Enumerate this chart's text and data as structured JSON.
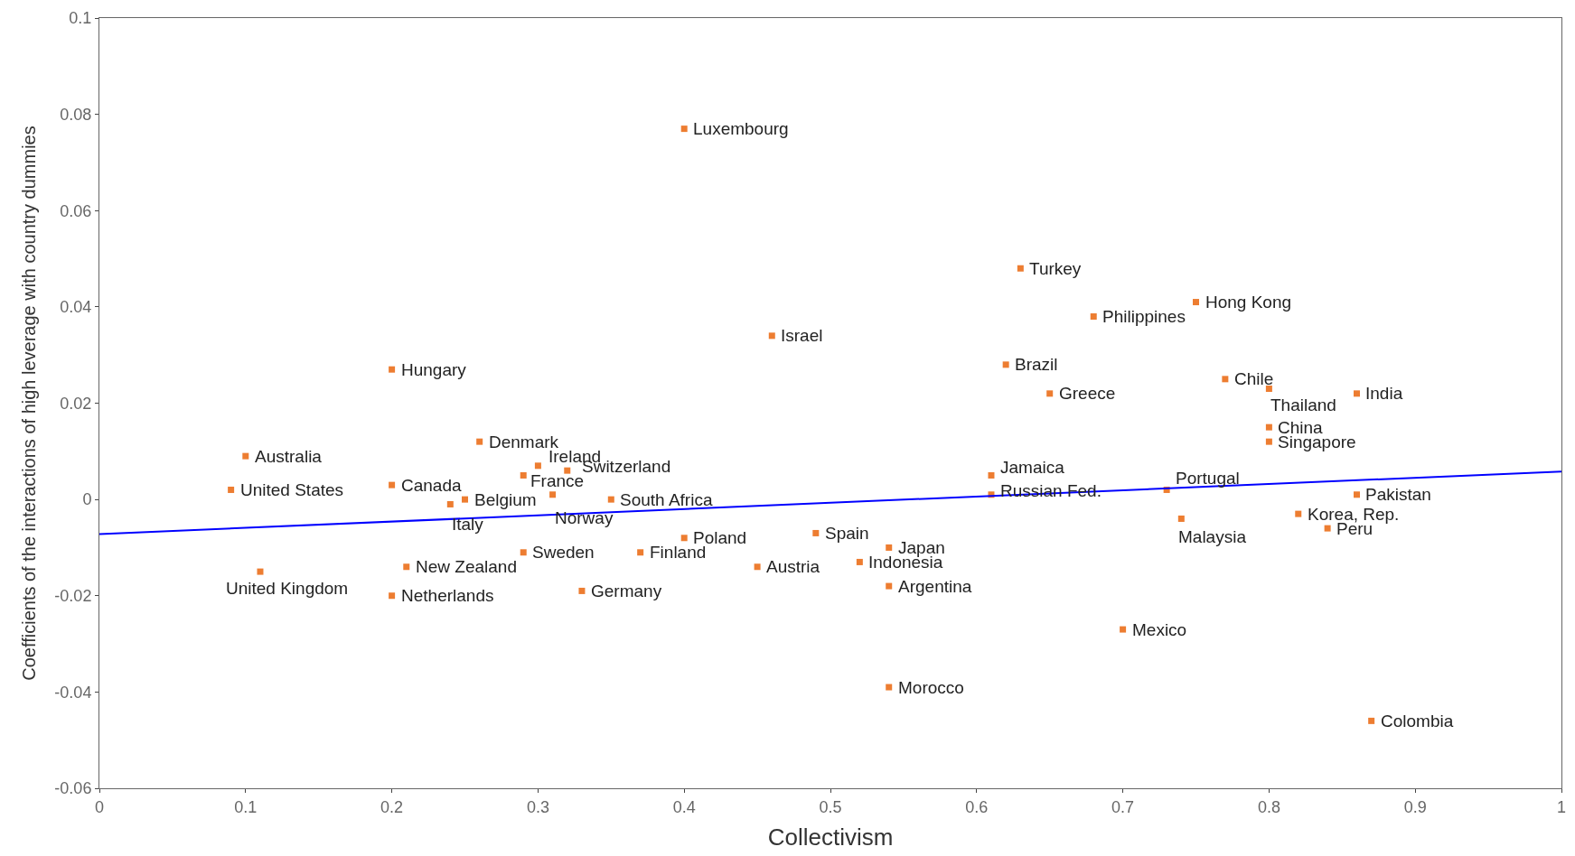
{
  "chart_data": {
    "type": "scatter",
    "xlabel": "Collectivism",
    "ylabel": "Coefficients of the interactions of high leverage with country dummies",
    "xlim": [
      0,
      1
    ],
    "xticks": [
      0,
      0.1,
      0.2,
      0.3,
      0.4,
      0.5,
      0.6,
      0.7,
      0.8,
      0.9,
      1
    ],
    "ylim": [
      -0.06,
      0.1
    ],
    "yticks": [
      -0.06,
      -0.04,
      -0.02,
      0,
      0.02,
      0.04,
      0.06,
      0.08,
      0.1
    ],
    "marker": "square",
    "series": [
      {
        "color": "#ed7d31",
        "x": [
          0.4,
          0.63,
          0.75,
          0.68,
          0.46,
          0.2,
          0.62,
          0.65,
          0.77,
          0.8,
          0.86,
          0.8,
          0.8,
          0.26,
          0.1,
          0.3,
          0.32,
          0.29,
          0.61,
          0.2,
          0.09,
          0.73,
          0.61,
          0.86,
          0.31,
          0.25,
          0.35,
          0.24,
          0.74,
          0.82,
          0.84,
          0.49,
          0.4,
          0.54,
          0.29,
          0.37,
          0.52,
          0.21,
          0.45,
          0.11,
          0.54,
          0.33,
          0.2,
          0.7,
          0.54,
          0.87
        ],
        "values": [
          0.077,
          0.048,
          0.041,
          0.038,
          0.034,
          0.027,
          0.028,
          0.022,
          0.025,
          0.023,
          0.022,
          0.015,
          0.012,
          0.012,
          0.009,
          0.007,
          0.006,
          0.005,
          0.005,
          0.003,
          0.002,
          0.002,
          0.001,
          0.001,
          0.001,
          0.0,
          0.0,
          -0.001,
          -0.004,
          -0.003,
          -0.006,
          -0.007,
          -0.008,
          -0.01,
          -0.011,
          -0.011,
          -0.013,
          -0.014,
          -0.014,
          -0.015,
          -0.018,
          -0.019,
          -0.02,
          -0.027,
          -0.039,
          -0.046
        ]
      },
      {
        "type": "line",
        "marker": "none",
        "color": "#0000ff",
        "line_style": "solid",
        "x": [
          0,
          1
        ],
        "values": [
          -0.0072,
          0.0058
        ]
      }
    ],
    "annotations": [
      {
        "text": "Luxembourg",
        "x": 0.4,
        "y": 0.077
      },
      {
        "text": "Turkey",
        "x": 0.63,
        "y": 0.048
      },
      {
        "text": "Hong Kong",
        "x": 0.75,
        "y": 0.041
      },
      {
        "text": "Philippines",
        "x": 0.68,
        "y": 0.038
      },
      {
        "text": "Israel",
        "x": 0.46,
        "y": 0.034
      },
      {
        "text": "Hungary",
        "x": 0.2,
        "y": 0.027
      },
      {
        "text": "Brazil",
        "x": 0.62,
        "y": 0.028
      },
      {
        "text": "Greece",
        "x": 0.65,
        "y": 0.022
      },
      {
        "text": "Chile",
        "x": 0.77,
        "y": 0.025
      },
      {
        "text": "Thailand",
        "x": 0.8,
        "y": 0.023
      },
      {
        "text": "India",
        "x": 0.86,
        "y": 0.022
      },
      {
        "text": "China",
        "x": 0.8,
        "y": 0.015
      },
      {
        "text": "Singapore",
        "x": 0.8,
        "y": 0.012
      },
      {
        "text": "Denmark",
        "x": 0.26,
        "y": 0.012
      },
      {
        "text": "Australia",
        "x": 0.1,
        "y": 0.009
      },
      {
        "text": "Ireland",
        "x": 0.3,
        "y": 0.007
      },
      {
        "text": "Switzerland",
        "x": 0.32,
        "y": 0.006
      },
      {
        "text": "France",
        "x": 0.29,
        "y": 0.005
      },
      {
        "text": "Jamaica",
        "x": 0.61,
        "y": 0.005
      },
      {
        "text": "Canada",
        "x": 0.2,
        "y": 0.003
      },
      {
        "text": "United States",
        "x": 0.09,
        "y": 0.002
      },
      {
        "text": "Portugal",
        "x": 0.73,
        "y": 0.002
      },
      {
        "text": "Russian Fed.",
        "x": 0.61,
        "y": 0.001
      },
      {
        "text": "Pakistan",
        "x": 0.86,
        "y": 0.001
      },
      {
        "text": "Norway",
        "x": 0.31,
        "y": 0.001
      },
      {
        "text": "Belgium",
        "x": 0.25,
        "y": 0.0
      },
      {
        "text": "South Africa",
        "x": 0.35,
        "y": 0.0
      },
      {
        "text": "Italy",
        "x": 0.24,
        "y": -0.001
      },
      {
        "text": "Malaysia",
        "x": 0.74,
        "y": -0.004
      },
      {
        "text": "Korea, Rep.",
        "x": 0.82,
        "y": -0.003
      },
      {
        "text": "Peru",
        "x": 0.84,
        "y": -0.006
      },
      {
        "text": "Spain",
        "x": 0.49,
        "y": -0.007
      },
      {
        "text": "Poland",
        "x": 0.4,
        "y": -0.008
      },
      {
        "text": "Japan",
        "x": 0.54,
        "y": -0.01
      },
      {
        "text": "Sweden",
        "x": 0.29,
        "y": -0.011
      },
      {
        "text": "Finland",
        "x": 0.37,
        "y": -0.011
      },
      {
        "text": "Indonesia",
        "x": 0.52,
        "y": -0.013
      },
      {
        "text": "New Zealand",
        "x": 0.21,
        "y": -0.014
      },
      {
        "text": "Austria",
        "x": 0.45,
        "y": -0.014
      },
      {
        "text": "United Kingdom",
        "x": 0.11,
        "y": -0.015
      },
      {
        "text": "Argentina",
        "x": 0.54,
        "y": -0.018
      },
      {
        "text": "Germany",
        "x": 0.33,
        "y": -0.019
      },
      {
        "text": "Netherlands",
        "x": 0.2,
        "y": -0.02
      },
      {
        "text": "Mexico",
        "x": 0.7,
        "y": -0.027
      },
      {
        "text": "Morocco",
        "x": 0.54,
        "y": -0.039
      },
      {
        "text": "Colombia",
        "x": 0.87,
        "y": -0.046
      }
    ]
  }
}
